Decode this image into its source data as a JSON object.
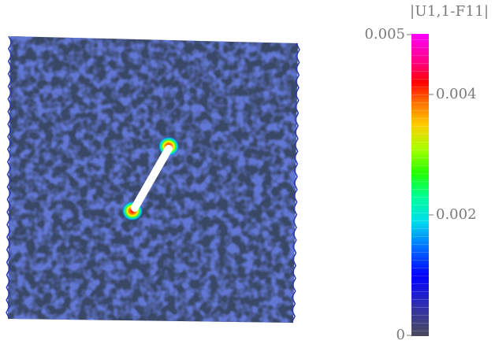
{
  "legend": {
    "title": "|U1,1-F11|",
    "ticks": [
      {
        "value": "0.005",
        "side": "left"
      },
      {
        "value": "0.004",
        "side": "right"
      },
      {
        "value": "0.002",
        "side": "right"
      },
      {
        "value": "0",
        "side": "left"
      }
    ],
    "range": [
      0,
      0.005
    ],
    "colors": [
      "#4a4a5a",
      "#2222cc",
      "#0055ff",
      "#00ccff",
      "#00ff99",
      "#33ff00",
      "#ccff00",
      "#ffcc00",
      "#ff6600",
      "#ff0000",
      "#ff0088",
      "#ff00ff"
    ]
  },
  "field": {
    "background_color": "#3a4a6a",
    "noise_color": "#1e2fa0",
    "crack_color": "#ffffff"
  }
}
